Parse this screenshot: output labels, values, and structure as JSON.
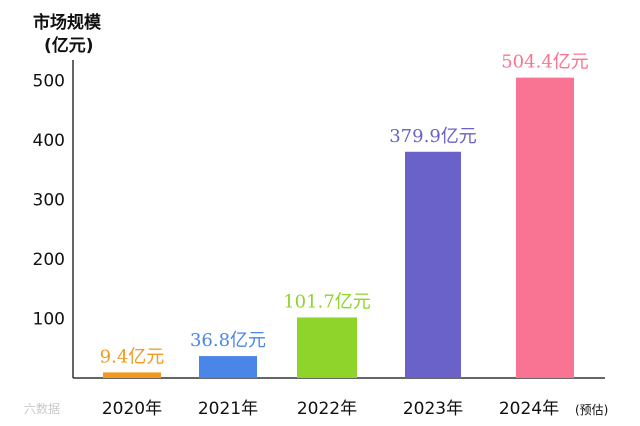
{
  "chart_data": {
    "type": "bar",
    "ylabel_line1": "市场规模",
    "ylabel_line2": "(亿元)",
    "categories": [
      "2020年",
      "2021年",
      "2022年",
      "2023年",
      "2024年"
    ],
    "category_notes": [
      "",
      "",
      "",
      "",
      "(预估)"
    ],
    "values": [
      9.4,
      36.8,
      101.7,
      379.9,
      504.4
    ],
    "data_labels": [
      "9.4亿元",
      "36.8亿元",
      "101.7亿元",
      "379.9亿元",
      "504.4亿元"
    ],
    "colors": [
      "#f29a1e",
      "#4a86e8",
      "#8ed42a",
      "#6a62c8",
      "#f97492"
    ],
    "yticks": [
      100,
      200,
      300,
      400,
      500
    ],
    "ylim": [
      0,
      530
    ],
    "grid": false
  },
  "watermark": "六数据"
}
